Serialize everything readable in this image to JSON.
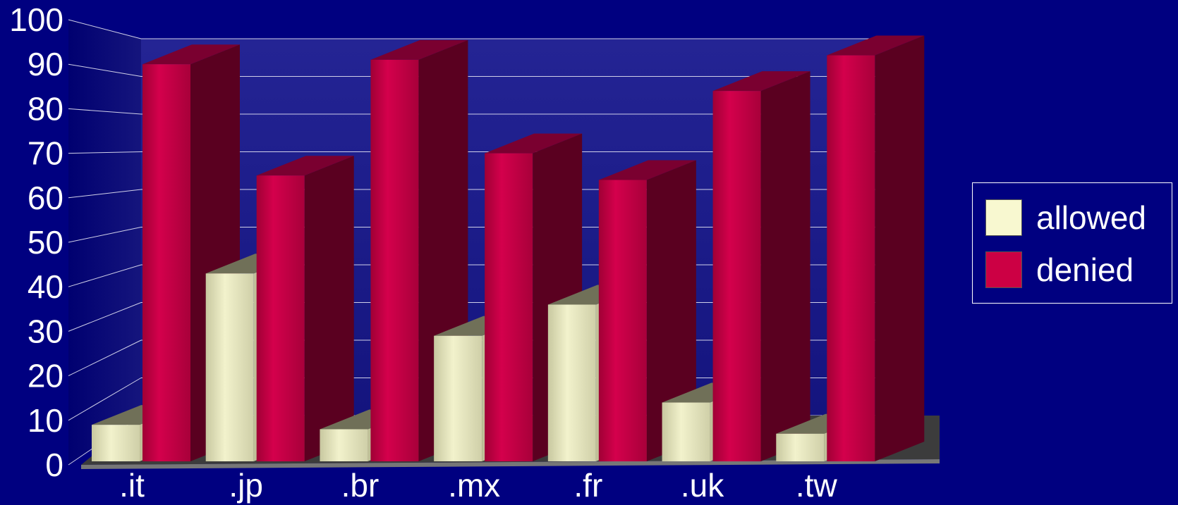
{
  "chart_data": {
    "type": "bar",
    "title": "",
    "xlabel": "",
    "ylabel": "",
    "categories": [
      ".it",
      ".jp",
      ".br",
      ".mx",
      ".fr",
      ".uk",
      ".tw"
    ],
    "series": [
      {
        "name": "allowed",
        "values": [
          9,
          43,
          8,
          29,
          36,
          14,
          7
        ]
      },
      {
        "name": "denied",
        "values": [
          90,
          65,
          91,
          70,
          64,
          84,
          92
        ]
      }
    ],
    "ylim": [
      0,
      100
    ],
    "yticks": [
      "0",
      "10",
      "20",
      "30",
      "40",
      "50",
      "60",
      "70",
      "80",
      "90",
      "100"
    ],
    "grid": true,
    "legend_position": "right",
    "colors": {
      "background": "#000080",
      "wall": "#1a1a8a",
      "allowed": "#f0f0c8",
      "denied": "#cc0044",
      "floor": "#505050"
    }
  }
}
